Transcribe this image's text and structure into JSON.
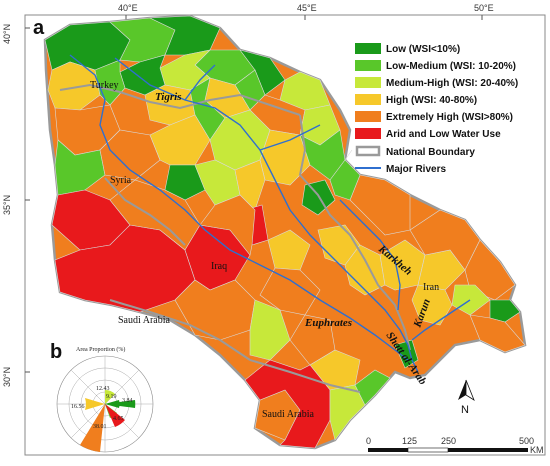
{
  "panel_a": "a",
  "panel_b": "b",
  "ticks": {
    "lon": [
      "40°E",
      "45°E",
      "50°E"
    ],
    "lat": [
      "40°N",
      "35°N",
      "30°N"
    ]
  },
  "legend": [
    {
      "label": "Low (WSI<10%)",
      "color": "#1a9a1a",
      "type": "fill"
    },
    {
      "label": "Low-Medium (WSI: 10-20%)",
      "color": "#59c72a",
      "type": "fill"
    },
    {
      "label": "Medium-High (WSI: 20-40%)",
      "color": "#c7e83a",
      "type": "fill"
    },
    {
      "label": "High (WSI: 40-80%)",
      "color": "#f6c82a",
      "type": "fill"
    },
    {
      "label": "Extremely High (WSI>80%)",
      "color": "#f07e1e",
      "type": "fill"
    },
    {
      "label": "Arid and Low Water Use",
      "color": "#e8191c",
      "type": "fill"
    },
    {
      "label": "National Boundary",
      "color": "#9a9a9a",
      "type": "outline"
    },
    {
      "label": "Major Rivers",
      "color": "#2f6fcf",
      "type": "line"
    }
  ],
  "places": {
    "turkey": "Turkey",
    "tigris": "Tigris",
    "syria": "Syria",
    "iraq": "Iraq",
    "iran": "Iran",
    "karkheh": "Karkheh",
    "karun": "Karun",
    "euphrates": "Euphrates",
    "shatt": "Shatt al-Arab",
    "saudi1": "Saudi Arabia",
    "saudi2": "Saudi Arabia"
  },
  "inset": {
    "title": "Area Proportion (%)",
    "values": [
      "12.43",
      "9.19",
      "16.56",
      "38.01",
      "3.84",
      "4.65"
    ]
  },
  "north": "N",
  "scale": {
    "labels": [
      "0",
      "125",
      "250",
      "500"
    ],
    "unit": "KM"
  }
}
